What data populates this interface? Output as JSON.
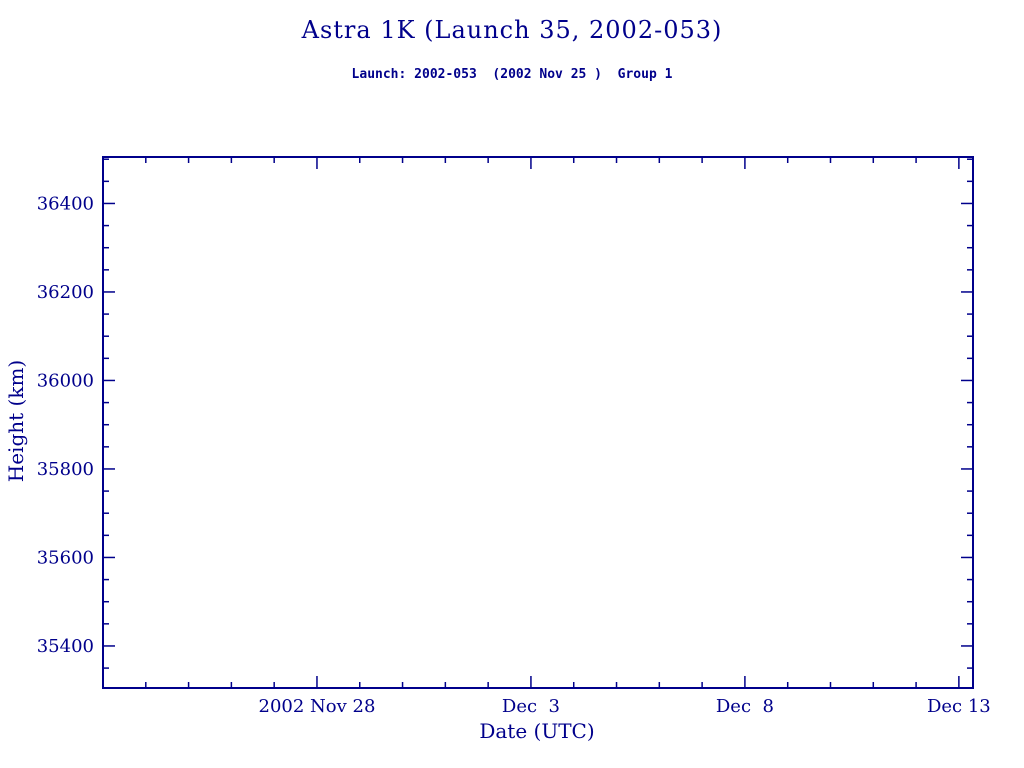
{
  "page": {
    "title": "Astra 1K (Launch 35, 2002-053)",
    "subtitle": "Launch: 2002-053  (2002 Nov 25 )  Group 1"
  },
  "colors": {
    "accent": "#00008B",
    "background": "#FFFFFF"
  },
  "chart_data": {
    "type": "line",
    "title": "Astra 1K (Launch 35, 2002-053)",
    "subtitle": "Launch: 2002-053  (2002 Nov 25 )  Group 1",
    "xlabel": "Date (UTC)",
    "ylabel": "Height (km)",
    "x_axis": {
      "range": [
        0,
        20.33
      ],
      "major_ticks": [
        {
          "pos": 5,
          "label": "2002 Nov 28"
        },
        {
          "pos": 10,
          "label": "Dec  3"
        },
        {
          "pos": 15,
          "label": "Dec  8"
        },
        {
          "pos": 20,
          "label": "Dec 13"
        }
      ],
      "minor_tick_interval": 1
    },
    "y_axis": {
      "range": [
        35305,
        36505
      ],
      "major_ticks": [
        35400,
        35600,
        35800,
        36000,
        36200,
        36400
      ],
      "minor_tick_interval": 50
    },
    "series": [],
    "grid": false,
    "legend": "none",
    "accent_color": "#00008B",
    "background_color": "#FFFFFF"
  }
}
